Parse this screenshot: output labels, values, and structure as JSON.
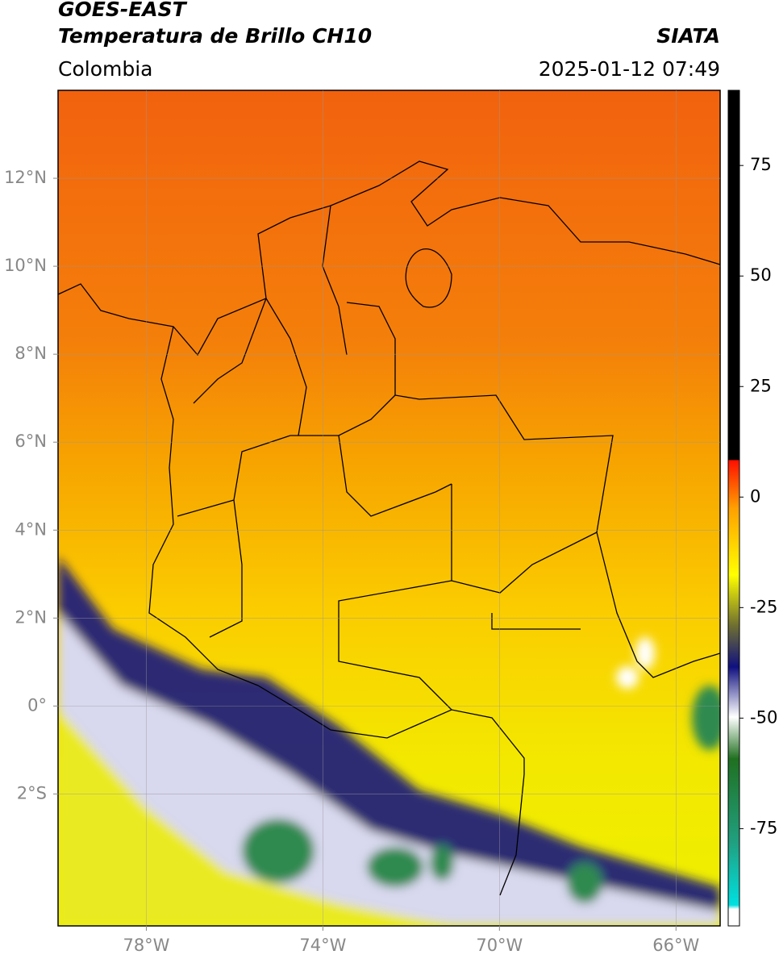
{
  "header": {
    "satellite": "GOES-EAST",
    "product": "Temperatura de Brillo CH10",
    "source": "SIATA",
    "region": "Colombia",
    "datetime": "2025-01-12 07:49"
  },
  "map": {
    "xlim": [
      -80,
      -65
    ],
    "ylim": [
      -5,
      14
    ],
    "xticks": [
      {
        "value": -78,
        "label": "78°W"
      },
      {
        "value": -74,
        "label": "74°W"
      },
      {
        "value": -70,
        "label": "70°W"
      },
      {
        "value": -66,
        "label": "66°W"
      }
    ],
    "yticks": [
      {
        "value": 12,
        "label": "12°N"
      },
      {
        "value": 10,
        "label": "10°N"
      },
      {
        "value": 8,
        "label": "8°N"
      },
      {
        "value": 6,
        "label": "6°N"
      },
      {
        "value": 4,
        "label": "4°N"
      },
      {
        "value": 2,
        "label": "2°N"
      },
      {
        "value": 0,
        "label": "0°"
      },
      {
        "value": -2,
        "label": "2°S"
      }
    ],
    "grid": true
  },
  "colorbar": {
    "lim": [
      -97,
      92
    ],
    "ticks": [
      75,
      50,
      25,
      0,
      -25,
      -50,
      -75
    ]
  }
}
